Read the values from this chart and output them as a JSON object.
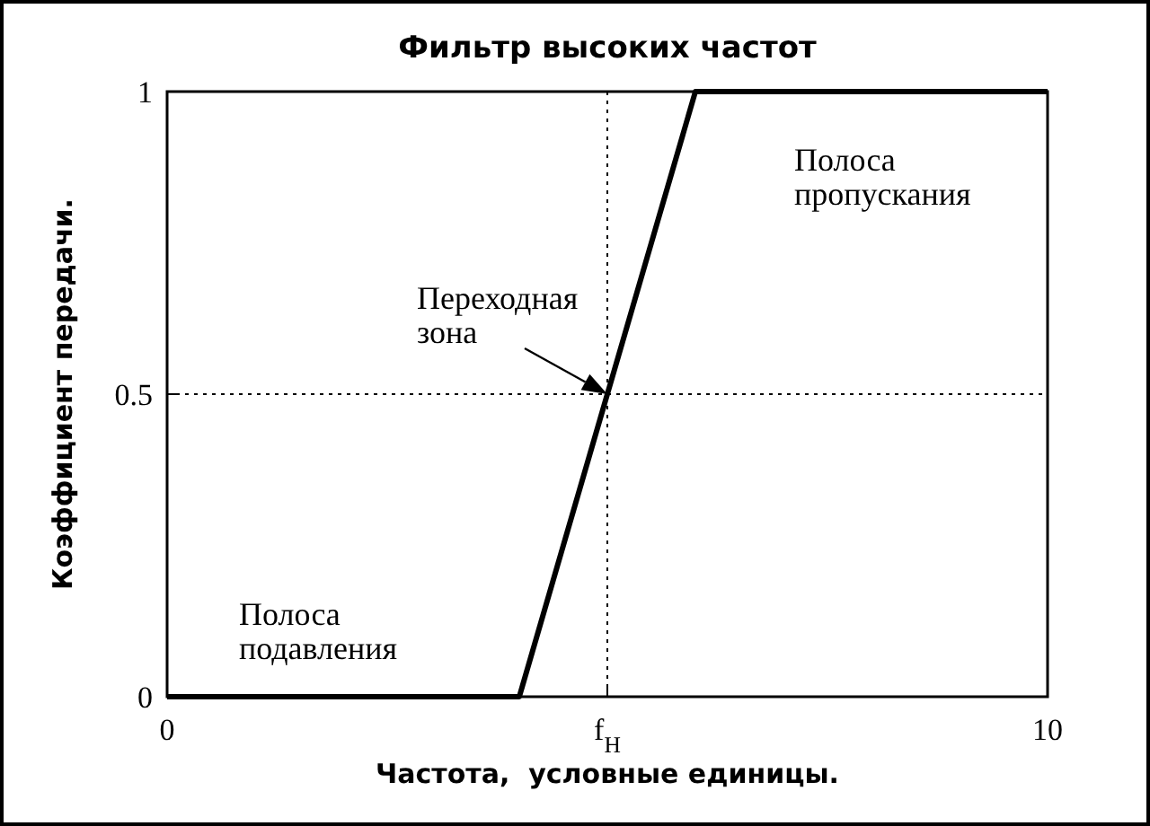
{
  "chart_data": {
    "type": "line",
    "title": "Фильтр высоких частот",
    "xlabel": "Частота,  условные единицы.",
    "ylabel": "Коэффициент передачи.",
    "x": [
      0,
      4,
      6,
      10
    ],
    "series": [
      {
        "color": "#000000",
        "values": [
          0,
          0,
          1,
          1
        ]
      }
    ],
    "xlim": [
      0,
      10
    ],
    "ylim": [
      0,
      1
    ],
    "xticks": [
      0,
      {
        "value": 5,
        "label": "f$_{Н}$"
      },
      10
    ],
    "yticks": [
      0,
      0.5,
      1
    ],
    "ref_lines": [
      {
        "axis": "x",
        "value": 5,
        "color": "#000000",
        "line_style": "dotted"
      },
      {
        "axis": "y",
        "value": 0.5,
        "color": "#000000",
        "line_style": "dotted"
      }
    ],
    "annotations": [
      "Полоса пропускания",
      {
        "text": "Переходная зона",
        "x": 5,
        "y": 0.5
      },
      "Полоса подавления"
    ],
    "grid": false,
    "marker": "none",
    "line_style": "solid"
  }
}
